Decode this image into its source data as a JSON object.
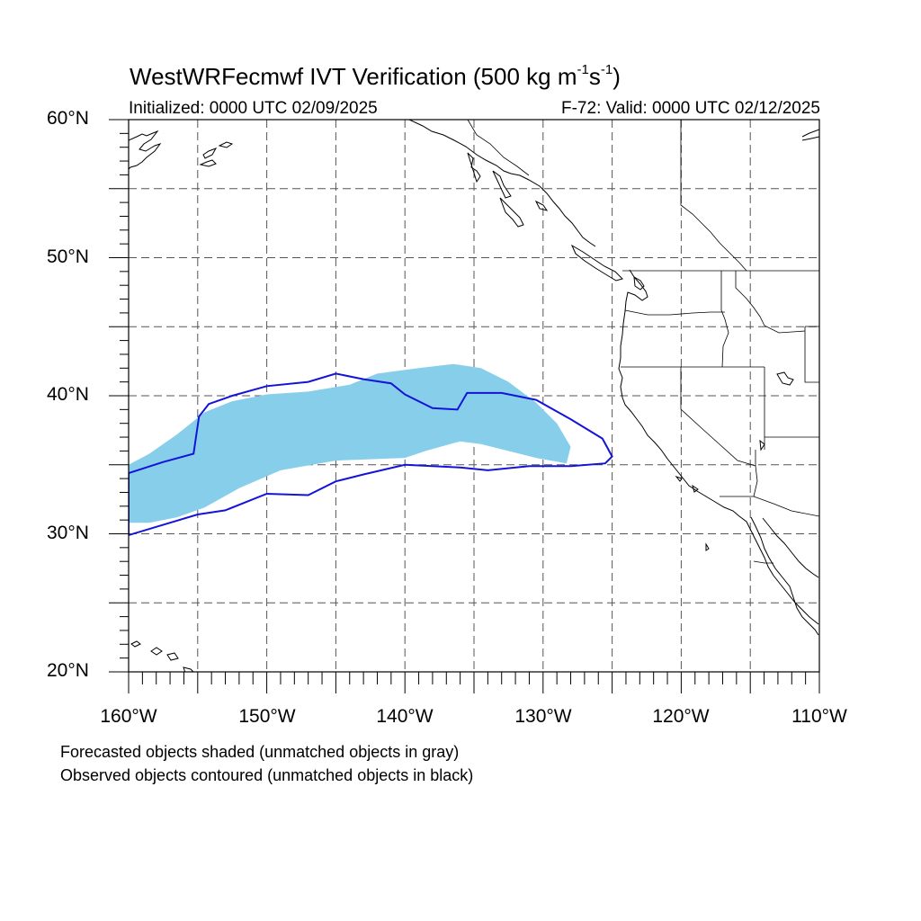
{
  "title": {
    "main": "WestWRFecmwf IVT Verification (500 kg m",
    "exp1": "-1",
    "mid": "s",
    "exp2": "-1",
    "end": ")"
  },
  "subtitle": {
    "left": "Initialized: 0000 UTC 02/09/2025",
    "right": "F-72: Valid: 0000 UTC 02/12/2025"
  },
  "map": {
    "lon_range": [
      -160,
      -110
    ],
    "lat_range": [
      20,
      60
    ],
    "grid": "dashed, every 5 degrees",
    "lat_labels": [
      "60°N",
      "50°N",
      "40°N",
      "30°N",
      "20°N"
    ],
    "lon_labels": [
      "160°W",
      "150°W",
      "140°W",
      "130°W",
      "120°W",
      "110°W"
    ],
    "forecast_object": {
      "color": "#87ceeb",
      "polygon_lonlat": [
        [
          -160,
          35.0
        ],
        [
          -158.5,
          35.8
        ],
        [
          -156.5,
          37.2
        ],
        [
          -154.5,
          38.8
        ],
        [
          -152.5,
          39.6
        ],
        [
          -150,
          40.1
        ],
        [
          -147,
          40.3
        ],
        [
          -144,
          40.8
        ],
        [
          -142,
          41.6
        ],
        [
          -139,
          42.0
        ],
        [
          -136.5,
          42.3
        ],
        [
          -134.5,
          42.0
        ],
        [
          -132.5,
          41.0
        ],
        [
          -130.5,
          39.5
        ],
        [
          -129,
          38.0
        ],
        [
          -128,
          36.3
        ],
        [
          -128.3,
          35.1
        ],
        [
          -130.5,
          35.5
        ],
        [
          -134.5,
          36.5
        ],
        [
          -136,
          36.7
        ],
        [
          -138.5,
          36.0
        ],
        [
          -140,
          35.5
        ],
        [
          -142.5,
          35.4
        ],
        [
          -145,
          35.3
        ],
        [
          -149,
          34.6
        ],
        [
          -152,
          33.3
        ],
        [
          -154.5,
          31.9
        ],
        [
          -156.5,
          31.2
        ],
        [
          -158.5,
          30.8
        ],
        [
          -160,
          30.8
        ]
      ]
    },
    "observed_object": {
      "color": "#1414d8",
      "polygon_lonlat": [
        [
          -160,
          34.4
        ],
        [
          -157.5,
          35.2
        ],
        [
          -155.3,
          35.8
        ],
        [
          -154.9,
          38.5
        ],
        [
          -154.2,
          39.4
        ],
        [
          -152.5,
          40.0
        ],
        [
          -150,
          40.7
        ],
        [
          -147,
          41.0
        ],
        [
          -145,
          41.6
        ],
        [
          -143,
          41.2
        ],
        [
          -141,
          40.9
        ],
        [
          -140,
          40.1
        ],
        [
          -138,
          39.1
        ],
        [
          -136.2,
          39.0
        ],
        [
          -135.5,
          40.2
        ],
        [
          -133,
          40.2
        ],
        [
          -130.5,
          39.7
        ],
        [
          -128,
          38.3
        ],
        [
          -125.7,
          36.9
        ],
        [
          -125,
          35.6
        ],
        [
          -125.5,
          35.1
        ],
        [
          -128,
          34.9
        ],
        [
          -131,
          34.9
        ],
        [
          -134,
          34.6
        ],
        [
          -136,
          34.8
        ],
        [
          -140,
          35.0
        ],
        [
          -143,
          34.3
        ],
        [
          -145,
          33.8
        ],
        [
          -147,
          32.8
        ],
        [
          -150,
          32.9
        ],
        [
          -153,
          31.7
        ],
        [
          -155,
          31.4
        ],
        [
          -157,
          30.8
        ],
        [
          -160,
          29.9
        ]
      ]
    }
  },
  "footer": {
    "line1": "Forecasted objects shaded (unmatched objects in gray)",
    "line2": "Observed objects contoured (unmatched objects in black)"
  }
}
